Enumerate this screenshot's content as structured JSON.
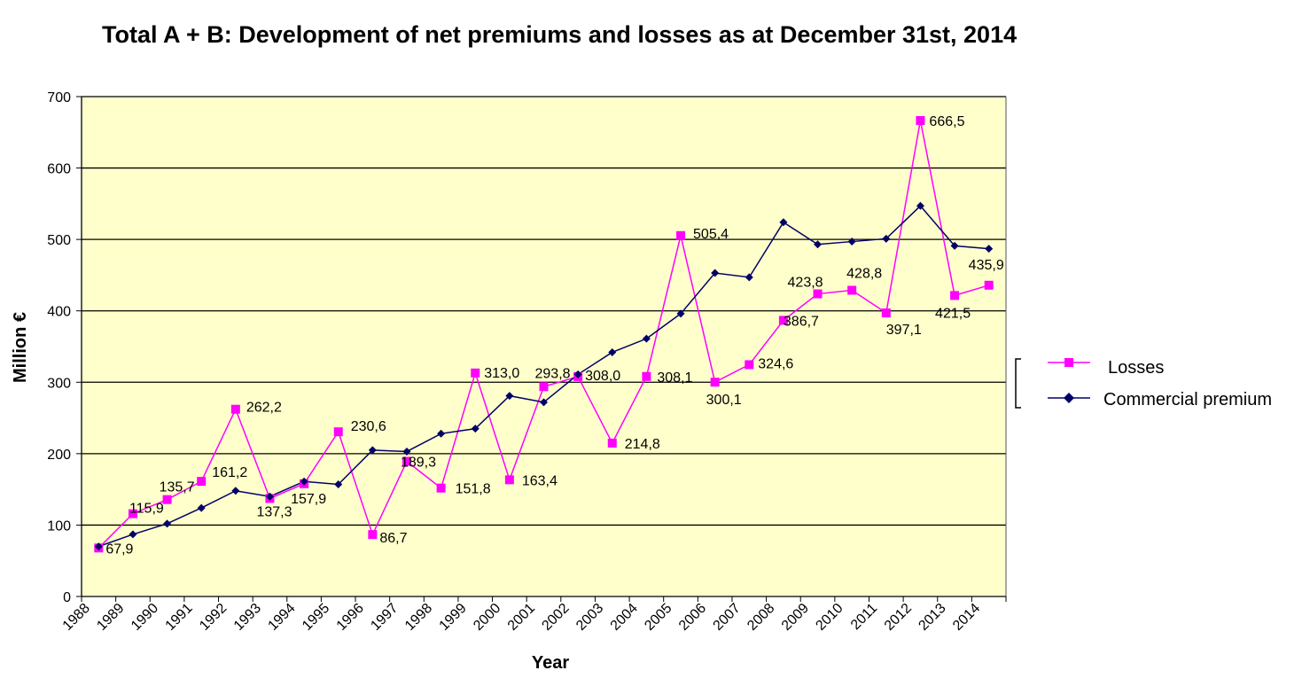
{
  "chart_data": {
    "type": "line",
    "title": "Total A + B: Development of net premiums and losses as at December 31st, 2014",
    "xlabel": "Year",
    "ylabel": "Million €",
    "ylim": [
      0,
      700
    ],
    "yticks": [
      0,
      100,
      200,
      300,
      400,
      500,
      600,
      700
    ],
    "grid": true,
    "legend_position": "right",
    "colors": {
      "plot_bg": "#FFFFCC",
      "losses": "#FF00FF",
      "premium": "#000066",
      "grid": "#000000"
    },
    "categories": [
      "1988",
      "1989",
      "1990",
      "1991",
      "1992",
      "1993",
      "1994",
      "1995",
      "1996",
      "1997",
      "1998",
      "1999",
      "2000",
      "2001",
      "2002",
      "2003",
      "2004",
      "2005",
      "2006",
      "2007",
      "2008",
      "2009",
      "2010",
      "2011",
      "2012",
      "2013",
      "2014"
    ],
    "series": [
      {
        "name": "Losses",
        "marker": "square",
        "values": [
          67.9,
          115.9,
          135.7,
          161.2,
          262.2,
          137.3,
          157.9,
          230.6,
          86.7,
          189.3,
          151.8,
          313.0,
          163.4,
          293.8,
          308.0,
          214.8,
          308.1,
          505.4,
          300.1,
          324.6,
          386.7,
          423.8,
          428.8,
          397.1,
          666.5,
          421.5,
          435.9
        ],
        "labels": [
          "67,9",
          "115,9",
          "135,7",
          "161,2",
          "262,2",
          "137,3",
          "157,9",
          "230,6",
          "86,7",
          "189,3",
          "151,8",
          "313,0",
          "163,4",
          "293,8",
          "308,0",
          "214,8",
          "308,1",
          "505,4",
          "300,1",
          "324,6",
          "386,7",
          "423,8",
          "428,8",
          "397,1",
          "666,5",
          "421,5",
          "435,9"
        ]
      },
      {
        "name": "Commercial premium",
        "marker": "diamond",
        "values": [
          70,
          87,
          102,
          124,
          148,
          140,
          161,
          157,
          205,
          203,
          228,
          235,
          281,
          272,
          311,
          342,
          361,
          396,
          453,
          447,
          524,
          493,
          497,
          501,
          547,
          491,
          487
        ]
      }
    ]
  }
}
